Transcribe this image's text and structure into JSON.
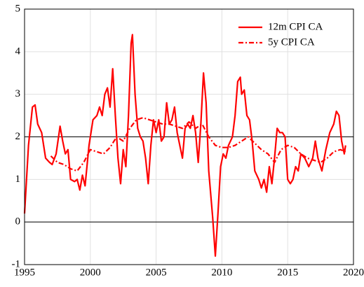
{
  "chart_data": {
    "type": "line",
    "series": [
      {
        "name": "12m CPI CA",
        "color": "#ff0000",
        "style": "solid",
        "x": [
          1995.0,
          1995.3,
          1995.6,
          1995.8,
          1996.0,
          1996.3,
          1996.6,
          1996.9,
          1997.1,
          1997.4,
          1997.7,
          1997.9,
          1998.1,
          1998.3,
          1998.5,
          1998.8,
          1999.0,
          1999.2,
          1999.4,
          1999.6,
          1999.9,
          2000.2,
          2000.5,
          2000.7,
          2000.9,
          2001.1,
          2001.3,
          2001.5,
          2001.7,
          2001.9,
          2002.1,
          2002.3,
          2002.5,
          2002.7,
          2002.9,
          2003.1,
          2003.2,
          2003.4,
          2003.6,
          2003.8,
          2004.0,
          2004.2,
          2004.4,
          2004.6,
          2004.8,
          2005.0,
          2005.2,
          2005.4,
          2005.6,
          2005.8,
          2006.0,
          2006.2,
          2006.4,
          2006.6,
          2006.8,
          2007.0,
          2007.2,
          2007.4,
          2007.6,
          2007.8,
          2008.0,
          2008.2,
          2008.4,
          2008.6,
          2008.8,
          2009.0,
          2009.3,
          2009.5,
          2009.7,
          2009.9,
          2010.1,
          2010.3,
          2010.5,
          2010.8,
          2011.0,
          2011.2,
          2011.4,
          2011.5,
          2011.7,
          2011.9,
          2012.1,
          2012.3,
          2012.5,
          2012.8,
          2013.0,
          2013.2,
          2013.4,
          2013.6,
          2013.8,
          2014.0,
          2014.2,
          2014.4,
          2014.6,
          2014.8,
          2015.0,
          2015.2,
          2015.4,
          2015.6,
          2015.8,
          2016.0,
          2016.3,
          2016.6,
          2016.9,
          2017.1,
          2017.3,
          2017.6,
          2017.9,
          2018.2,
          2018.5,
          2018.7,
          2018.9,
          2019.1,
          2019.3,
          2019.4
        ],
        "values": [
          0.2,
          1.8,
          2.7,
          2.75,
          2.3,
          2.1,
          1.5,
          1.4,
          1.35,
          1.6,
          2.25,
          1.9,
          1.6,
          1.7,
          1.0,
          0.95,
          1.0,
          0.75,
          1.1,
          0.85,
          1.8,
          2.4,
          2.5,
          2.7,
          2.5,
          3.0,
          3.15,
          2.7,
          3.6,
          2.5,
          1.5,
          0.9,
          1.7,
          1.3,
          2.5,
          4.2,
          4.4,
          3.0,
          2.2,
          2.0,
          1.9,
          1.5,
          0.9,
          1.8,
          2.4,
          2.1,
          2.4,
          1.9,
          2.0,
          2.8,
          2.3,
          2.4,
          2.7,
          2.1,
          1.8,
          1.5,
          2.2,
          2.3,
          2.2,
          2.5,
          2.1,
          1.4,
          2.3,
          3.5,
          2.8,
          1.2,
          0.1,
          -0.8,
          0.2,
          1.3,
          1.6,
          1.5,
          1.8,
          2.0,
          2.5,
          3.3,
          3.4,
          3.0,
          3.1,
          2.5,
          2.4,
          1.9,
          1.2,
          1.0,
          0.8,
          1.0,
          0.7,
          1.3,
          0.9,
          1.5,
          2.2,
          2.1,
          2.1,
          2.0,
          1.0,
          0.9,
          1.0,
          1.3,
          1.2,
          1.6,
          1.5,
          1.3,
          1.5,
          1.9,
          1.5,
          1.2,
          1.7,
          2.1,
          2.3,
          2.6,
          2.5,
          1.9,
          1.6,
          1.8
        ]
      },
      {
        "name": "5y CPI CA",
        "color": "#ff0000",
        "style": "dashdot",
        "x": [
          1997.0,
          1997.5,
          1998.0,
          1998.5,
          1999.0,
          1999.5,
          2000.0,
          2000.5,
          2001.0,
          2001.5,
          2002.0,
          2002.5,
          2003.0,
          2003.5,
          2004.0,
          2004.5,
          2005.0,
          2005.5,
          2006.0,
          2006.5,
          2007.0,
          2007.5,
          2008.0,
          2008.5,
          2009.0,
          2009.5,
          2010.0,
          2010.5,
          2011.0,
          2011.5,
          2012.0,
          2012.5,
          2013.0,
          2013.5,
          2014.0,
          2014.5,
          2015.0,
          2015.5,
          2016.0,
          2016.5,
          2017.0,
          2017.5,
          2018.0,
          2018.5,
          2019.0,
          2019.4
        ],
        "values": [
          1.55,
          1.4,
          1.35,
          1.25,
          1.2,
          1.4,
          1.7,
          1.65,
          1.6,
          1.75,
          2.0,
          1.9,
          2.2,
          2.4,
          2.45,
          2.4,
          2.35,
          2.3,
          2.3,
          2.25,
          2.2,
          2.35,
          2.2,
          2.3,
          2.0,
          1.8,
          1.75,
          1.75,
          1.8,
          1.9,
          2.0,
          1.85,
          1.7,
          1.6,
          1.4,
          1.7,
          1.8,
          1.75,
          1.6,
          1.5,
          1.45,
          1.4,
          1.5,
          1.65,
          1.7,
          1.65
        ]
      }
    ],
    "xlim": [
      1995,
      2020
    ],
    "xticks": [
      1995,
      2000,
      2005,
      2010,
      2015,
      2020
    ],
    "ylim": [
      -1,
      5
    ],
    "yticks": [
      -1,
      0,
      1,
      2,
      3,
      4,
      5
    ],
    "reference_lines": [
      0,
      2
    ],
    "grid": true,
    "legend": "upper right"
  }
}
